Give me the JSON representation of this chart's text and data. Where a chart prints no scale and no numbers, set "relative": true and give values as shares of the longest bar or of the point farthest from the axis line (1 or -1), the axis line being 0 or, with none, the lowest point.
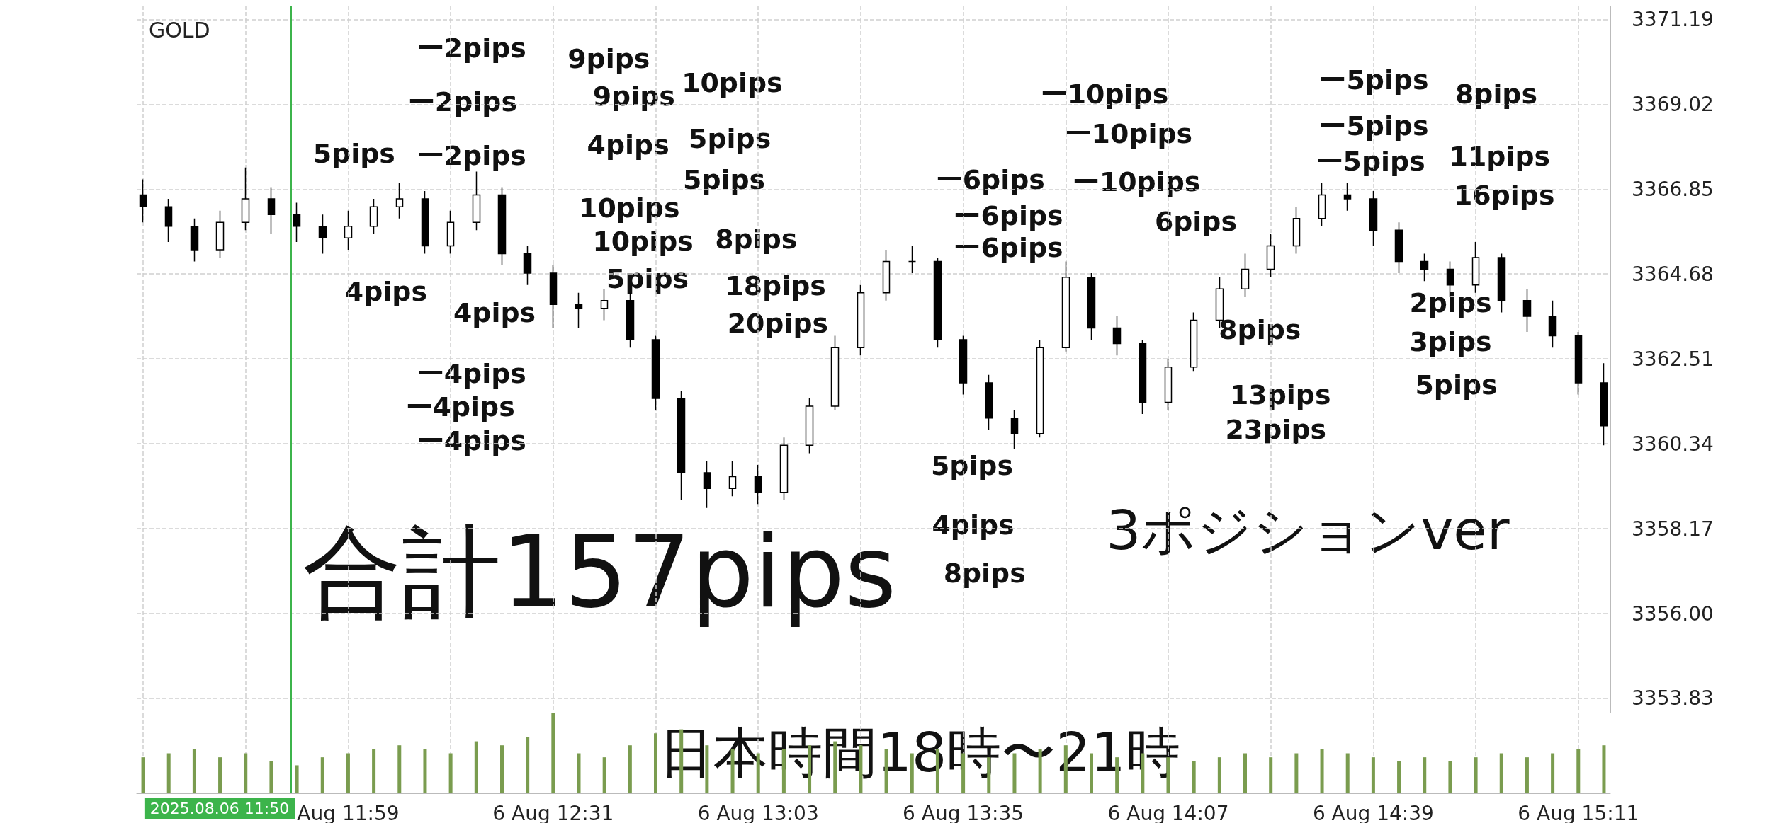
{
  "chart_data": [
    {
      "type": "candlestick",
      "title": "GOLD",
      "tick_labels": "y",
      "grid": true,
      "color": "#000000",
      "xlim": [
        "2025-08-06T11:26",
        "2025-08-06T15:16"
      ],
      "xticks": [
        {
          "value": "2025-08-06T11:27",
          "label": null
        },
        {
          "value": "2025-08-06T11:43",
          "label": null
        },
        {
          "value": "2025-08-06T11:59",
          "label": null
        },
        {
          "value": "2025-08-06T12:15",
          "label": null
        },
        {
          "value": "2025-08-06T12:31",
          "label": null
        },
        {
          "value": "2025-08-06T12:47",
          "label": null
        },
        {
          "value": "2025-08-06T13:03",
          "label": null
        },
        {
          "value": "2025-08-06T13:19",
          "label": null
        },
        {
          "value": "2025-08-06T13:35",
          "label": null
        },
        {
          "value": "2025-08-06T13:51",
          "label": null
        },
        {
          "value": "2025-08-06T14:07",
          "label": null
        },
        {
          "value": "2025-08-06T14:23",
          "label": null
        },
        {
          "value": "2025-08-06T14:39",
          "label": null
        },
        {
          "value": "2025-08-06T14:55",
          "label": null
        },
        {
          "value": "2025-08-06T15:11",
          "label": null
        }
      ],
      "ylim": [
        3353.45,
        3371.54
      ],
      "yticks": [
        {
          "value": 3353.83,
          "label": "3353.83"
        },
        {
          "value": 3356,
          "label": "3356.00"
        },
        {
          "value": 3358.17,
          "label": "3358.17"
        },
        {
          "value": 3360.34,
          "label": "3360.34"
        },
        {
          "value": 3362.51,
          "label": "3362.51"
        },
        {
          "value": 3364.68,
          "label": "3364.68"
        },
        {
          "value": 3366.85,
          "label": "3366.85"
        },
        {
          "value": 3369.02,
          "label": "3369.02"
        },
        {
          "value": 3371.19,
          "label": "3371.19"
        }
      ],
      "ref_lines": [
        {
          "axis": "x",
          "value": "2025-08-06T11:50",
          "color": "#3cb44b"
        }
      ],
      "x": [
        "2025-08-06T11:27",
        "2025-08-06T11:31",
        "2025-08-06T11:35",
        "2025-08-06T11:39",
        "2025-08-06T11:43",
        "2025-08-06T11:47",
        "2025-08-06T11:51",
        "2025-08-06T11:55",
        "2025-08-06T11:59",
        "2025-08-06T12:03",
        "2025-08-06T12:07",
        "2025-08-06T12:11",
        "2025-08-06T12:15",
        "2025-08-06T12:19",
        "2025-08-06T12:23",
        "2025-08-06T12:27",
        "2025-08-06T12:31",
        "2025-08-06T12:35",
        "2025-08-06T12:39",
        "2025-08-06T12:43",
        "2025-08-06T12:47",
        "2025-08-06T12:51",
        "2025-08-06T12:55",
        "2025-08-06T12:59",
        "2025-08-06T13:03",
        "2025-08-06T13:07",
        "2025-08-06T13:11",
        "2025-08-06T13:15",
        "2025-08-06T13:19",
        "2025-08-06T13:23",
        "2025-08-06T13:27",
        "2025-08-06T13:31",
        "2025-08-06T13:35",
        "2025-08-06T13:39",
        "2025-08-06T13:43",
        "2025-08-06T13:47",
        "2025-08-06T13:51",
        "2025-08-06T13:55",
        "2025-08-06T13:59",
        "2025-08-06T14:03",
        "2025-08-06T14:07",
        "2025-08-06T14:11",
        "2025-08-06T14:15",
        "2025-08-06T14:19",
        "2025-08-06T14:23",
        "2025-08-06T14:27",
        "2025-08-06T14:31",
        "2025-08-06T14:35",
        "2025-08-06T14:39",
        "2025-08-06T14:43",
        "2025-08-06T14:47",
        "2025-08-06T14:51",
        "2025-08-06T14:55",
        "2025-08-06T14:59",
        "2025-08-06T15:03",
        "2025-08-06T15:07",
        "2025-08-06T15:11",
        "2025-08-06T15:15"
      ],
      "ohlc": [
        [
          3366.7,
          3367.1,
          3366.0,
          3366.4
        ],
        [
          3366.4,
          3366.6,
          3365.5,
          3365.9
        ],
        [
          3365.9,
          3366.1,
          3365.0,
          3365.3
        ],
        [
          3365.3,
          3366.3,
          3365.1,
          3366.0
        ],
        [
          3366.0,
          3367.4,
          3365.8,
          3366.6
        ],
        [
          3366.6,
          3366.9,
          3365.7,
          3366.2
        ],
        [
          3366.2,
          3366.5,
          3365.5,
          3365.9
        ],
        [
          3365.9,
          3366.2,
          3365.2,
          3365.6
        ],
        [
          3365.6,
          3366.3,
          3365.3,
          3365.9
        ],
        [
          3365.9,
          3366.6,
          3365.7,
          3366.4
        ],
        [
          3366.4,
          3367.0,
          3366.1,
          3366.6
        ],
        [
          3366.6,
          3366.8,
          3365.2,
          3365.4
        ],
        [
          3365.4,
          3366.3,
          3365.2,
          3366.0
        ],
        [
          3366.0,
          3367.3,
          3365.8,
          3366.7
        ],
        [
          3366.7,
          3366.9,
          3364.9,
          3365.2
        ],
        [
          3365.2,
          3365.4,
          3364.4,
          3364.7
        ],
        [
          3364.7,
          3364.9,
          3363.3,
          3363.9
        ],
        [
          3363.9,
          3364.2,
          3363.3,
          3363.8
        ],
        [
          3363.8,
          3364.3,
          3363.5,
          3364.0
        ],
        [
          3364.0,
          3364.2,
          3362.8,
          3363.0
        ],
        [
          3363.0,
          3363.1,
          3361.2,
          3361.5
        ],
        [
          3361.5,
          3361.7,
          3358.9,
          3359.6
        ],
        [
          3359.6,
          3359.9,
          3358.7,
          3359.2
        ],
        [
          3359.2,
          3359.9,
          3359.0,
          3359.5
        ],
        [
          3359.5,
          3359.8,
          3358.8,
          3359.1
        ],
        [
          3359.1,
          3360.5,
          3358.9,
          3360.3
        ],
        [
          3360.3,
          3361.5,
          3360.1,
          3361.3
        ],
        [
          3361.3,
          3363.1,
          3361.2,
          3362.8
        ],
        [
          3362.8,
          3364.4,
          3362.6,
          3364.2
        ],
        [
          3364.2,
          3365.3,
          3364.0,
          3365.0
        ],
        [
          3365.0,
          3365.4,
          3364.7,
          3365.0
        ],
        [
          3365.0,
          3365.1,
          3362.8,
          3363.0
        ],
        [
          3363.0,
          3363.1,
          3361.6,
          3361.9
        ],
        [
          3361.9,
          3362.1,
          3360.7,
          3361.0
        ],
        [
          3361.0,
          3361.2,
          3360.2,
          3360.6
        ],
        [
          3360.6,
          3363.0,
          3360.5,
          3362.8
        ],
        [
          3362.8,
          3365.0,
          3362.7,
          3364.6
        ],
        [
          3364.6,
          3364.7,
          3363.0,
          3363.3
        ],
        [
          3363.3,
          3363.6,
          3362.6,
          3362.9
        ],
        [
          3362.9,
          3363.0,
          3361.1,
          3361.4
        ],
        [
          3361.4,
          3362.5,
          3361.2,
          3362.3
        ],
        [
          3362.3,
          3363.7,
          3362.2,
          3363.5
        ],
        [
          3363.5,
          3364.6,
          3363.3,
          3364.3
        ],
        [
          3364.3,
          3365.2,
          3364.1,
          3364.8
        ],
        [
          3364.8,
          3365.7,
          3364.6,
          3365.4
        ],
        [
          3365.4,
          3366.4,
          3365.2,
          3366.1
        ],
        [
          3366.1,
          3367.0,
          3365.9,
          3366.7
        ],
        [
          3366.7,
          3367.0,
          3366.3,
          3366.6
        ],
        [
          3366.6,
          3366.8,
          3365.4,
          3365.8
        ],
        [
          3365.8,
          3366.0,
          3364.7,
          3365.0
        ],
        [
          3365.0,
          3365.2,
          3364.5,
          3364.8
        ],
        [
          3364.8,
          3365.0,
          3364.1,
          3364.4
        ],
        [
          3364.4,
          3365.5,
          3364.2,
          3365.1
        ],
        [
          3365.1,
          3365.2,
          3363.7,
          3364.0
        ],
        [
          3364.0,
          3364.3,
          3363.2,
          3363.6
        ],
        [
          3363.6,
          3364.0,
          3362.8,
          3363.1
        ],
        [
          3363.1,
          3363.2,
          3361.6,
          3361.9
        ],
        [
          3361.9,
          3362.4,
          3360.3,
          3360.8
        ]
      ],
      "annotations": [
        "合計157pips",
        "3ポジションver",
        "ー2pips",
        "ー2pips",
        "ー2pips",
        "5pips",
        "9pips",
        "9pips",
        "10pips",
        "4pips",
        "5pips",
        "5pips",
        "10pips",
        "10pips",
        "8pips",
        "5pips",
        "18pips",
        "20pips",
        "4pips",
        "4pips",
        "ー4pips",
        "ー4pips",
        "ー4pips",
        "ー10pips",
        "ー10pips",
        "ー10pips",
        "6pips",
        "ー6pips",
        "ー6pips",
        "ー6pips",
        "ー5pips",
        "ー5pips",
        "ー5pips",
        "8pips",
        "11pips",
        "16pips",
        "8pips",
        "2pips",
        "3pips",
        "5pips",
        "13pips",
        "23pips",
        "5pips",
        "4pips",
        "8pips"
      ]
    },
    {
      "type": "bar",
      "relative": true,
      "tick_labels": "x",
      "grid": "x",
      "color": "#7a9c4f",
      "xlim": [
        "2025-08-06T11:26",
        "2025-08-06T15:16"
      ],
      "xticks": [
        {
          "value": "2025-08-06T11:27",
          "label": null
        },
        {
          "value": "2025-08-06T11:43",
          "label": null
        },
        {
          "value": "2025-08-06T11:59",
          "label": "Aug 11:59"
        },
        {
          "value": "2025-08-06T12:15",
          "label": null
        },
        {
          "value": "2025-08-06T12:31",
          "label": "6 Aug 12:31"
        },
        {
          "value": "2025-08-06T12:47",
          "label": null
        },
        {
          "value": "2025-08-06T13:03",
          "label": "6 Aug 13:03"
        },
        {
          "value": "2025-08-06T13:19",
          "label": null
        },
        {
          "value": "2025-08-06T13:35",
          "label": "6 Aug 13:35"
        },
        {
          "value": "2025-08-06T13:51",
          "label": null
        },
        {
          "value": "2025-08-06T14:07",
          "label": "6 Aug 14:07"
        },
        {
          "value": "2025-08-06T14:23",
          "label": null
        },
        {
          "value": "2025-08-06T14:39",
          "label": "6 Aug 14:39"
        },
        {
          "value": "2025-08-06T14:55",
          "label": null
        },
        {
          "value": "2025-08-06T15:11",
          "label": "6 Aug 15:11"
        }
      ],
      "ref_lines": [
        {
          "axis": "x",
          "value": "2025-08-06T11:50",
          "label": "2025.08.06 11:50",
          "color": "#3cb44b"
        }
      ],
      "x": [
        "2025-08-06T11:27",
        "2025-08-06T11:31",
        "2025-08-06T11:35",
        "2025-08-06T11:39",
        "2025-08-06T11:43",
        "2025-08-06T11:47",
        "2025-08-06T11:51",
        "2025-08-06T11:55",
        "2025-08-06T11:59",
        "2025-08-06T12:03",
        "2025-08-06T12:07",
        "2025-08-06T12:11",
        "2025-08-06T12:15",
        "2025-08-06T12:19",
        "2025-08-06T12:23",
        "2025-08-06T12:27",
        "2025-08-06T12:31",
        "2025-08-06T12:35",
        "2025-08-06T12:39",
        "2025-08-06T12:43",
        "2025-08-06T12:47",
        "2025-08-06T12:51",
        "2025-08-06T12:55",
        "2025-08-06T12:59",
        "2025-08-06T13:03",
        "2025-08-06T13:07",
        "2025-08-06T13:11",
        "2025-08-06T13:15",
        "2025-08-06T13:19",
        "2025-08-06T13:23",
        "2025-08-06T13:27",
        "2025-08-06T13:31",
        "2025-08-06T13:35",
        "2025-08-06T13:39",
        "2025-08-06T13:43",
        "2025-08-06T13:47",
        "2025-08-06T13:51",
        "2025-08-06T13:55",
        "2025-08-06T13:59",
        "2025-08-06T14:03",
        "2025-08-06T14:07",
        "2025-08-06T14:11",
        "2025-08-06T14:15",
        "2025-08-06T14:19",
        "2025-08-06T14:23",
        "2025-08-06T14:27",
        "2025-08-06T14:31",
        "2025-08-06T14:35",
        "2025-08-06T14:39",
        "2025-08-06T14:43",
        "2025-08-06T14:47",
        "2025-08-06T14:51",
        "2025-08-06T14:55",
        "2025-08-06T14:59",
        "2025-08-06T15:03",
        "2025-08-06T15:07",
        "2025-08-06T15:11",
        "2025-08-06T15:15"
      ],
      "values": [
        0.45,
        0.5,
        0.55,
        0.45,
        0.5,
        0.4,
        0.35,
        0.45,
        0.5,
        0.55,
        0.6,
        0.55,
        0.5,
        0.65,
        0.6,
        0.7,
        1.0,
        0.5,
        0.45,
        0.6,
        0.75,
        0.8,
        0.6,
        0.55,
        0.5,
        0.55,
        0.6,
        0.65,
        0.6,
        0.55,
        0.5,
        0.55,
        0.5,
        0.45,
        0.5,
        0.55,
        0.6,
        0.5,
        0.45,
        0.5,
        0.45,
        0.4,
        0.45,
        0.5,
        0.45,
        0.5,
        0.55,
        0.5,
        0.45,
        0.4,
        0.45,
        0.4,
        0.45,
        0.5,
        0.45,
        0.5,
        0.55,
        0.6
      ],
      "annotations": [
        "日本時間18時〜21時"
      ]
    }
  ]
}
